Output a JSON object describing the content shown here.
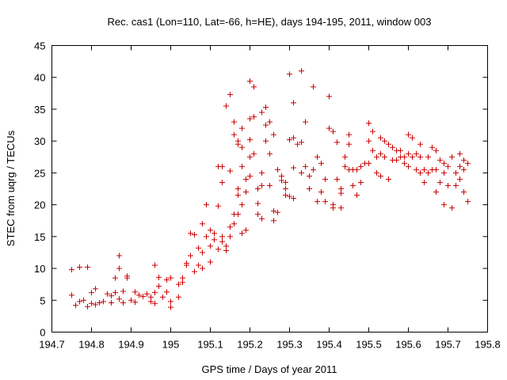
{
  "chart_data": {
    "type": "scatter",
    "title": "Rec. cas1 (Lon=110, Lat=-66, h=HE), days 194-195, 2011, window 003",
    "xlabel": "GPS time / Days of year 2011",
    "ylabel": "STEC from uqrg / TECUs",
    "xlim": [
      194.7,
      195.8
    ],
    "ylim": [
      0,
      45
    ],
    "xticks": [
      "194.7",
      "194.8",
      "194.9",
      "195",
      "195.1",
      "195.2",
      "195.3",
      "195.4",
      "195.5",
      "195.6",
      "195.7",
      "195.8"
    ],
    "yticks": [
      "0",
      "5",
      "10",
      "15",
      "20",
      "25",
      "30",
      "35",
      "40",
      "45"
    ],
    "marker": "plus",
    "color": "#cc0000",
    "grid": false,
    "points": [
      [
        194.75,
        9.8
      ],
      [
        194.77,
        10.2
      ],
      [
        194.79,
        10.2
      ],
      [
        194.75,
        5.8
      ],
      [
        194.76,
        4.2
      ],
      [
        194.77,
        4.8
      ],
      [
        194.78,
        5.0
      ],
      [
        194.79,
        4.0
      ],
      [
        194.8,
        4.5
      ],
      [
        194.8,
        6.2
      ],
      [
        194.81,
        4.3
      ],
      [
        194.81,
        6.8
      ],
      [
        194.82,
        4.6
      ],
      [
        194.83,
        4.8
      ],
      [
        194.84,
        6.0
      ],
      [
        194.85,
        5.7
      ],
      [
        194.85,
        4.6
      ],
      [
        194.86,
        6.2
      ],
      [
        194.86,
        8.5
      ],
      [
        194.87,
        12.0
      ],
      [
        194.87,
        10.0
      ],
      [
        194.87,
        5.2
      ],
      [
        194.88,
        6.4
      ],
      [
        194.88,
        4.6
      ],
      [
        194.89,
        8.8
      ],
      [
        194.89,
        8.5
      ],
      [
        194.9,
        5.0
      ],
      [
        194.91,
        6.3
      ],
      [
        194.91,
        4.7
      ],
      [
        194.92,
        5.8
      ],
      [
        194.93,
        5.6
      ],
      [
        194.94,
        6.0
      ],
      [
        194.95,
        4.8
      ],
      [
        194.95,
        5.5
      ],
      [
        194.96,
        10.5
      ],
      [
        194.96,
        6.2
      ],
      [
        194.96,
        4.5
      ],
      [
        194.97,
        8.6
      ],
      [
        194.97,
        7.2
      ],
      [
        194.98,
        5.5
      ],
      [
        194.99,
        8.2
      ],
      [
        194.99,
        6.3
      ],
      [
        195.0,
        8.5
      ],
      [
        195.0,
        4.8
      ],
      [
        195.0,
        3.9
      ],
      [
        195.02,
        5.5
      ],
      [
        195.02,
        7.5
      ],
      [
        195.03,
        7.8
      ],
      [
        195.03,
        8.5
      ],
      [
        195.04,
        10.5
      ],
      [
        195.04,
        10.8
      ],
      [
        195.05,
        12.0
      ],
      [
        195.05,
        15.5
      ],
      [
        195.06,
        15.3
      ],
      [
        195.06,
        9.5
      ],
      [
        195.07,
        13.2
      ],
      [
        195.07,
        10.5
      ],
      [
        195.08,
        12.5
      ],
      [
        195.08,
        17.0
      ],
      [
        195.08,
        10.0
      ],
      [
        195.09,
        20.0
      ],
      [
        195.09,
        15.0
      ],
      [
        195.1,
        16.0
      ],
      [
        195.1,
        11.0
      ],
      [
        195.1,
        13.5
      ],
      [
        195.11,
        14.5
      ],
      [
        195.11,
        15.5
      ],
      [
        195.12,
        19.8
      ],
      [
        195.12,
        13.0
      ],
      [
        195.13,
        15.0
      ],
      [
        195.13,
        14.2
      ],
      [
        195.14,
        12.8
      ],
      [
        195.14,
        13.5
      ],
      [
        195.15,
        15.0
      ],
      [
        195.15,
        16.5
      ],
      [
        195.16,
        17.0
      ],
      [
        195.16,
        18.5
      ],
      [
        195.17,
        18.5
      ],
      [
        195.17,
        21.5
      ],
      [
        195.18,
        20.0
      ],
      [
        195.18,
        15.5
      ],
      [
        195.19,
        16.0
      ],
      [
        195.12,
        26.0
      ],
      [
        195.13,
        26.0
      ],
      [
        195.13,
        23.5
      ],
      [
        195.14,
        35.5
      ],
      [
        195.15,
        37.3
      ],
      [
        195.15,
        25.3
      ],
      [
        195.16,
        31.0
      ],
      [
        195.16,
        33.0
      ],
      [
        195.17,
        30.0
      ],
      [
        195.17,
        29.5
      ],
      [
        195.17,
        22.5
      ],
      [
        195.18,
        32.0
      ],
      [
        195.18,
        26.0
      ],
      [
        195.18,
        29.0
      ],
      [
        195.19,
        24.0
      ],
      [
        195.19,
        22.0
      ],
      [
        195.2,
        39.4
      ],
      [
        195.2,
        33.5
      ],
      [
        195.2,
        30.2
      ],
      [
        195.2,
        27.5
      ],
      [
        195.2,
        24.5
      ],
      [
        195.21,
        38.5
      ],
      [
        195.21,
        33.8
      ],
      [
        195.21,
        28.0
      ],
      [
        195.22,
        22.5
      ],
      [
        195.22,
        20.2
      ],
      [
        195.22,
        18.5
      ],
      [
        195.23,
        34.5
      ],
      [
        195.23,
        25.0
      ],
      [
        195.23,
        23.0
      ],
      [
        195.23,
        17.8
      ],
      [
        195.24,
        35.3
      ],
      [
        195.24,
        32.5
      ],
      [
        195.24,
        30.0
      ],
      [
        195.25,
        33.0
      ],
      [
        195.25,
        28.0
      ],
      [
        195.25,
        23.0
      ],
      [
        195.26,
        31.0
      ],
      [
        195.26,
        19.0
      ],
      [
        195.26,
        17.5
      ],
      [
        195.27,
        25.5
      ],
      [
        195.27,
        18.8
      ],
      [
        195.28,
        23.8
      ],
      [
        195.28,
        24.5
      ],
      [
        195.29,
        23.5
      ],
      [
        195.29,
        22.5
      ],
      [
        195.29,
        21.5
      ],
      [
        195.3,
        40.5
      ],
      [
        195.3,
        30.2
      ],
      [
        195.3,
        21.3
      ],
      [
        195.31,
        36.0
      ],
      [
        195.31,
        30.5
      ],
      [
        195.31,
        25.8
      ],
      [
        195.31,
        21.0
      ],
      [
        195.32,
        29.5
      ],
      [
        195.33,
        41.0
      ],
      [
        195.33,
        29.8
      ],
      [
        195.33,
        25.0
      ],
      [
        195.34,
        33.0
      ],
      [
        195.34,
        26.0
      ],
      [
        195.35,
        24.5
      ],
      [
        195.35,
        22.5
      ],
      [
        195.36,
        38.5
      ],
      [
        195.36,
        25.5
      ],
      [
        195.37,
        27.5
      ],
      [
        195.37,
        20.5
      ],
      [
        195.38,
        22.0
      ],
      [
        195.38,
        26.5
      ],
      [
        195.39,
        24.0
      ],
      [
        195.39,
        20.5
      ],
      [
        195.4,
        37.0
      ],
      [
        195.4,
        32.0
      ],
      [
        195.41,
        31.5
      ],
      [
        195.41,
        20.0
      ],
      [
        195.41,
        19.5
      ],
      [
        195.42,
        29.8
      ],
      [
        195.42,
        24.0
      ],
      [
        195.43,
        22.5
      ],
      [
        195.43,
        19.5
      ],
      [
        195.43,
        21.8
      ],
      [
        195.44,
        27.5
      ],
      [
        195.44,
        26.0
      ],
      [
        195.45,
        31.0
      ],
      [
        195.45,
        29.5
      ],
      [
        195.45,
        25.5
      ],
      [
        195.46,
        25.5
      ],
      [
        195.46,
        23.0
      ],
      [
        195.47,
        21.5
      ],
      [
        195.47,
        25.5
      ],
      [
        195.48,
        26.0
      ],
      [
        195.48,
        23.5
      ],
      [
        195.49,
        26.5
      ],
      [
        195.5,
        32.8
      ],
      [
        195.5,
        30.0
      ],
      [
        195.5,
        26.5
      ],
      [
        195.51,
        31.5
      ],
      [
        195.51,
        28.5
      ],
      [
        195.52,
        27.5
      ],
      [
        195.52,
        25.0
      ],
      [
        195.53,
        30.5
      ],
      [
        195.53,
        28.0
      ],
      [
        195.53,
        24.5
      ],
      [
        195.54,
        30.0
      ],
      [
        195.54,
        27.5
      ],
      [
        195.55,
        29.5
      ],
      [
        195.55,
        24.0
      ],
      [
        195.56,
        29.0
      ],
      [
        195.56,
        27.0
      ],
      [
        195.57,
        28.5
      ],
      [
        195.57,
        27.0
      ],
      [
        195.58,
        28.5
      ],
      [
        195.58,
        27.5
      ],
      [
        195.59,
        27.5
      ],
      [
        195.59,
        26.5
      ],
      [
        195.6,
        31.0
      ],
      [
        195.6,
        28.0
      ],
      [
        195.6,
        26.0
      ],
      [
        195.61,
        30.5
      ],
      [
        195.61,
        27.5
      ],
      [
        195.62,
        28.0
      ],
      [
        195.62,
        25.5
      ],
      [
        195.63,
        29.5
      ],
      [
        195.63,
        27.5
      ],
      [
        195.63,
        25.0
      ],
      [
        195.64,
        23.5
      ],
      [
        195.64,
        25.5
      ],
      [
        195.65,
        27.5
      ],
      [
        195.65,
        25.0
      ],
      [
        195.66,
        29.0
      ],
      [
        195.66,
        25.5
      ],
      [
        195.67,
        28.5
      ],
      [
        195.67,
        25.5
      ],
      [
        195.67,
        22.0
      ],
      [
        195.68,
        27.0
      ],
      [
        195.68,
        23.5
      ],
      [
        195.69,
        26.5
      ],
      [
        195.69,
        25.0
      ],
      [
        195.69,
        20.0
      ],
      [
        195.7,
        26.0
      ],
      [
        195.7,
        23.0
      ],
      [
        195.71,
        27.5
      ],
      [
        195.71,
        19.5
      ],
      [
        195.72,
        25.0
      ],
      [
        195.72,
        23.0
      ],
      [
        195.73,
        28.0
      ],
      [
        195.73,
        26.0
      ],
      [
        195.73,
        24.0
      ],
      [
        195.74,
        27.0
      ],
      [
        195.74,
        25.5
      ],
      [
        195.74,
        22.0
      ],
      [
        195.75,
        26.5
      ],
      [
        195.75,
        20.5
      ]
    ]
  }
}
